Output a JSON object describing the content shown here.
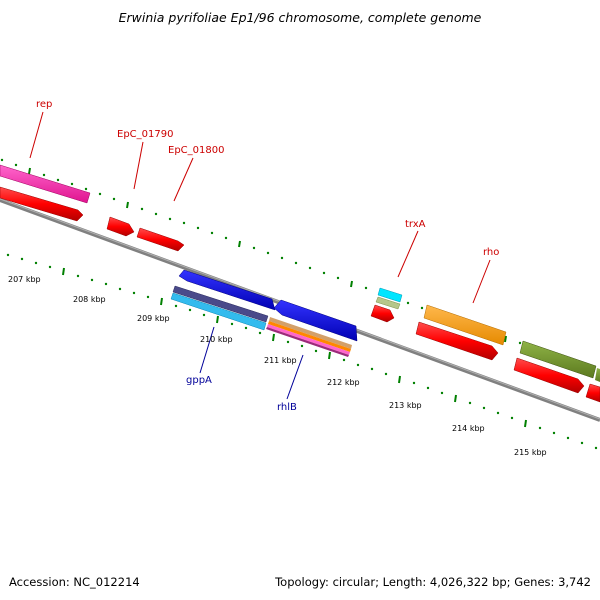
{
  "title": "Erwinia pyrifoliae Ep1/96 chromosome, complete genome",
  "footer": {
    "accession": "Accession: NC_012214",
    "summary": "Topology: circular; Length: 4,026,322 bp; Genes: 3,742"
  },
  "ticks": [
    "207 kbp",
    "208 kbp",
    "209 kbp",
    "210 kbp",
    "211 kbp",
    "212 kbp",
    "213 kbp",
    "214 kbp",
    "215 kbp"
  ],
  "gene_labels": {
    "top": [
      "rep",
      "EpC_01790",
      "EpC_01800",
      "trxA",
      "rho"
    ],
    "bottom": [
      "gppA",
      "rhlB"
    ]
  },
  "colors": {
    "top_label": "#cc0000",
    "bottom_label": "#000099",
    "tick": "#008000",
    "backbone": "#808080"
  }
}
